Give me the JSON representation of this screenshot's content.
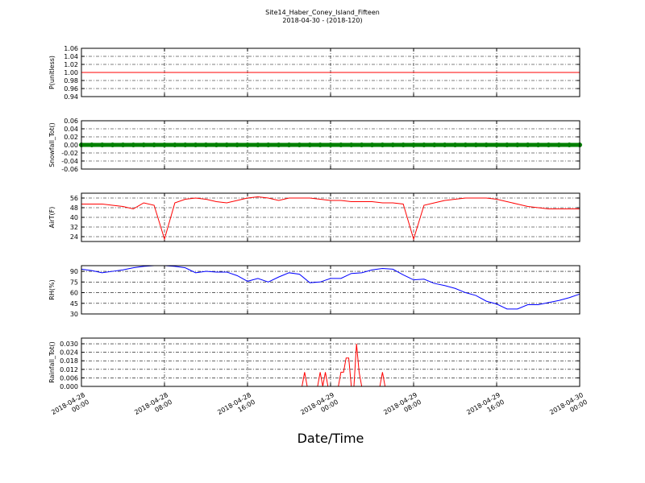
{
  "figure": {
    "title": "Site14_Haber_Coney_Island_Fifteen",
    "subtitle": "2018-04-30 - (2018-120)",
    "xlabel": "Date/Time",
    "xlim": [
      0,
      48
    ],
    "xticks": [
      {
        "value": 0,
        "label": "2018-04-28\n00:00"
      },
      {
        "value": 8,
        "label": "2018-04-28\n08:00"
      },
      {
        "value": 16,
        "label": "2018-04-28\n16:00"
      },
      {
        "value": 24,
        "label": "2018-04-29\n00:00"
      },
      {
        "value": 32,
        "label": "2018-04-29\n08:00"
      },
      {
        "value": 40,
        "label": "2018-04-29\n16:00"
      },
      {
        "value": 48,
        "label": "2018-04-30\n00:00"
      }
    ],
    "x": [
      0,
      1,
      2,
      3,
      4,
      5,
      6,
      7,
      8,
      9,
      10,
      11,
      12,
      13,
      14,
      15,
      16,
      17,
      18,
      19,
      20,
      21,
      22,
      23,
      24,
      25,
      26,
      27,
      28,
      29,
      30,
      31,
      32,
      33,
      34,
      35,
      36,
      37,
      38,
      39,
      40,
      41,
      42,
      43,
      44,
      45,
      46,
      47,
      48
    ],
    "grid": true
  },
  "chart_data": [
    {
      "type": "line",
      "ylabel": "P(unitless)",
      "ylim": [
        0.94,
        1.06
      ],
      "yticks": [
        0.94,
        0.96,
        0.98,
        {
          "value": 1,
          "label": "1.00"
        },
        1.02,
        1.04,
        1.06
      ],
      "series": [
        {
          "color": "#ff0000",
          "values": [
            1,
            1,
            1,
            1,
            1,
            1,
            1,
            1,
            1,
            1,
            1,
            1,
            1,
            1,
            1,
            1,
            1,
            1,
            1,
            1,
            1,
            1,
            1,
            1,
            1,
            1,
            1,
            1,
            1,
            1,
            1,
            1,
            1,
            1,
            1,
            1,
            1,
            1,
            1,
            1,
            1,
            1,
            1,
            1,
            1,
            1,
            1,
            1,
            1
          ]
        }
      ]
    },
    {
      "type": "line",
      "ylabel": "Snowfall_Tot()",
      "ylim": [
        -0.06,
        0.06
      ],
      "yticks": [
        -0.06,
        -0.04,
        -0.02,
        {
          "value": 0,
          "label": "0.00"
        },
        0.02,
        0.04,
        0.06
      ],
      "series": [
        {
          "color": "#008000",
          "marker": "o",
          "values": [
            0,
            0,
            0,
            0,
            0,
            0,
            0,
            0,
            0,
            0,
            0,
            0,
            0,
            0,
            0,
            0,
            0,
            0,
            0,
            0,
            0,
            0,
            0,
            0,
            0,
            0,
            0,
            0,
            0,
            0,
            0,
            0,
            0,
            0,
            0,
            0,
            0,
            0,
            0,
            0,
            0,
            0,
            0,
            0,
            0,
            0,
            0,
            0,
            0
          ]
        }
      ]
    },
    {
      "type": "line",
      "ylabel": "AirT(F)",
      "ylim": [
        20,
        60
      ],
      "yticks": [
        24,
        32,
        40,
        48,
        56
      ],
      "series": [
        {
          "color": "#ff0000",
          "values": [
            51,
            51,
            51,
            50,
            49,
            47,
            52,
            50,
            22,
            52,
            55,
            56,
            55,
            53,
            52,
            54,
            56,
            57,
            56,
            54,
            56,
            56,
            56,
            55,
            54,
            54,
            53,
            53,
            53,
            52,
            52,
            51,
            22,
            50,
            52,
            54,
            55,
            56,
            56,
            56,
            55,
            53,
            51,
            49,
            48,
            47,
            47,
            47,
            47
          ]
        }
      ]
    },
    {
      "type": "line",
      "ylabel": "RH(%)",
      "ylim": [
        30,
        98
      ],
      "yticks": [
        30,
        45,
        60,
        75,
        90
      ],
      "series": [
        {
          "color": "#0000ff",
          "values": [
            93,
            91,
            88,
            90,
            92,
            95,
            97,
            98,
            98,
            97,
            95,
            88,
            90,
            89,
            89,
            84,
            76,
            80,
            75,
            82,
            88,
            86,
            74,
            75,
            80,
            80,
            87,
            88,
            92,
            94,
            93,
            85,
            78,
            79,
            73,
            70,
            66,
            60,
            56,
            48,
            44,
            37,
            37,
            43,
            43,
            46,
            49,
            53,
            58
          ]
        }
      ]
    },
    {
      "type": "line",
      "ylabel": "Rainfall_Tot()",
      "ylim": [
        0,
        0.034
      ],
      "yticks": [
        {
          "value": 0,
          "label": "0.000"
        },
        0.006,
        0.012,
        0.018,
        0.024,
        {
          "value": 0.03,
          "label": "0.030"
        }
      ],
      "x": [
        0,
        21.25,
        21.5,
        21.75,
        22.75,
        23,
        23.25,
        23.5,
        23.75,
        24,
        24.75,
        25,
        25.25,
        25.5,
        25.75,
        26,
        26.25,
        26.5,
        26.75,
        27,
        27.25,
        28.75,
        29,
        29.25,
        48
      ],
      "series": [
        {
          "color": "#ff0000",
          "values": [
            0,
            0,
            0.01,
            0,
            0,
            0.01,
            0,
            0.01,
            0,
            0,
            0,
            0.01,
            0.01,
            0.02,
            0.02,
            0,
            0,
            0.03,
            0.01,
            0,
            0,
            0,
            0.01,
            0,
            0
          ]
        }
      ]
    }
  ]
}
